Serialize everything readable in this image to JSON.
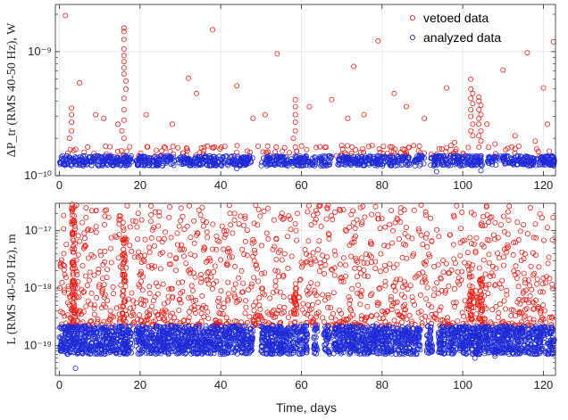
{
  "figure": {
    "xlabel": "Time, days",
    "xticks": [
      0,
      20,
      40,
      60,
      80,
      100,
      120
    ],
    "xlim": [
      -1,
      123
    ]
  },
  "legend": {
    "items": [
      {
        "label": "vetoed data",
        "color": "#e8231c",
        "marker": "circle-open"
      },
      {
        "label": "analyzed data",
        "color": "#1f2bd6",
        "marker": "circle-open"
      }
    ]
  },
  "colors": {
    "vetoed": "#e8231c",
    "analyzed": "#1f2bd6",
    "grid": "#e6e6e6",
    "axis": "#262626"
  },
  "chart_data": [
    {
      "type": "scatter",
      "ylabel": "ΔP_tr (RMS 40-50 Hz), W",
      "yscale": "log",
      "ylim": [
        1e-10,
        2.4e-09
      ],
      "yticks": [
        {
          "value": 1e-10,
          "label": "10⁻¹⁰"
        },
        {
          "value": 1e-09,
          "label": "10⁻⁹"
        }
      ],
      "series": [
        {
          "name": "analyzed data",
          "band": {
            "low": 1.2e-10,
            "high": 1.45e-10
          },
          "x_segments": [
            [
              0,
              18
            ],
            [
              19,
              48
            ],
            [
              50,
              63.5
            ],
            [
              64.5,
              67.5
            ],
            [
              69,
              87
            ],
            [
              88,
              90.5
            ],
            [
              92,
              105
            ],
            [
              106,
              123
            ]
          ],
          "outliers": [
            [
              93.5,
              1.08e-10
            ],
            [
              104.5,
              1.1e-10
            ],
            [
              44,
              1.14e-10
            ]
          ]
        },
        {
          "name": "vetoed data",
          "points": [
            [
              1.5,
              1.95e-09
            ],
            [
              5,
              5.6e-10
            ],
            [
              9,
              3.1e-10
            ],
            [
              16,
              1.55e-09
            ],
            [
              16,
              1.45e-09
            ],
            [
              16,
              1.25e-09
            ],
            [
              16,
              1.05e-09
            ],
            [
              16,
              9.3e-10
            ],
            [
              16,
              8.3e-10
            ],
            [
              16,
              7.4e-10
            ],
            [
              16,
              6.6e-10
            ],
            [
              16.5,
              5.8e-10
            ],
            [
              16.5,
              5e-10
            ],
            [
              16,
              4.2e-10
            ],
            [
              16,
              3.4e-10
            ],
            [
              16,
              2.8e-10
            ],
            [
              15.5,
              2.3e-10
            ],
            [
              16,
              2e-10
            ],
            [
              3,
              3.5e-10
            ],
            [
              3,
              3.1e-10
            ],
            [
              3,
              2.7e-10
            ],
            [
              3,
              2.3e-10
            ],
            [
              2.5,
              2e-10
            ],
            [
              11,
              2.9e-10
            ],
            [
              14.5,
              2.6e-10
            ],
            [
              21.5,
              3.1e-10
            ],
            [
              28,
              2.6e-10
            ],
            [
              32,
              6.1e-10
            ],
            [
              34,
              4.6e-10
            ],
            [
              38,
              1.5e-09
            ],
            [
              44,
              5.3e-10
            ],
            [
              48,
              2.9e-10
            ],
            [
              51,
              3.1e-10
            ],
            [
              54,
              9.6e-10
            ],
            [
              58.5,
              4.1e-10
            ],
            [
              58.5,
              3.6e-10
            ],
            [
              58.5,
              3.1e-10
            ],
            [
              58.5,
              2.7e-10
            ],
            [
              58.5,
              2.3e-10
            ],
            [
              58,
              2e-10
            ],
            [
              58.5,
              1.7e-10
            ],
            [
              62,
              3.6e-10
            ],
            [
              67.5,
              4.1e-10
            ],
            [
              71.5,
              2.9e-10
            ],
            [
              73,
              7.6e-10
            ],
            [
              75.5,
              3.1e-10
            ],
            [
              79,
              1.22e-09
            ],
            [
              83,
              4.6e-10
            ],
            [
              86,
              3.6e-10
            ],
            [
              90.5,
              2.9e-10
            ],
            [
              96,
              5.1e-10
            ],
            [
              102,
              6e-10
            ],
            [
              102,
              5e-10
            ],
            [
              102.5,
              4.6e-10
            ],
            [
              102,
              4.2e-10
            ],
            [
              102.5,
              3.8e-10
            ],
            [
              102,
              3.4e-10
            ],
            [
              102,
              3e-10
            ],
            [
              102.5,
              2.6e-10
            ],
            [
              102,
              2.3e-10
            ],
            [
              102.5,
              2.1e-10
            ],
            [
              104,
              4.3e-10
            ],
            [
              104,
              4e-10
            ],
            [
              104.5,
              3.7e-10
            ],
            [
              104,
              3.4e-10
            ],
            [
              104.5,
              3.1e-10
            ],
            [
              104,
              2.9e-10
            ],
            [
              104,
              2.6e-10
            ],
            [
              104.5,
              2.3e-10
            ],
            [
              104,
              2.1e-10
            ],
            [
              104.5,
              1.9e-10
            ],
            [
              104,
              1.7e-10
            ],
            [
              106,
              2.6e-10
            ],
            [
              110,
              7.1e-10
            ],
            [
              113,
              2.1e-10
            ],
            [
              116,
              9.8e-10
            ],
            [
              120,
              5.1e-10
            ],
            [
              121,
              2.6e-10
            ],
            [
              122.5,
              1.2e-09
            ],
            [
              108,
              1.8e-10
            ],
            [
              118,
              1.9e-10
            ],
            [
              98,
              1.85e-10
            ],
            [
              70,
              1.75e-10
            ],
            [
              26,
              1.7e-10
            ],
            [
              41,
              1.72e-10
            ],
            [
              7,
              1.7e-10
            ],
            [
              96,
              1.68e-10
            ],
            [
              113,
              1.65e-10
            ]
          ]
        }
      ]
    },
    {
      "type": "scatter",
      "ylabel": "L (RMS 40-50 Hz), m",
      "yscale": "log",
      "ylim": [
        3e-20,
        3e-17
      ],
      "yticks": [
        {
          "value": 1e-19,
          "label": "10⁻¹⁹"
        },
        {
          "value": 1e-18,
          "label": "10⁻¹⁸"
        },
        {
          "value": 1e-17,
          "label": "10⁻¹⁷"
        }
      ],
      "series": [
        {
          "name": "analyzed data",
          "band": {
            "low": 7e-20,
            "high": 2.2e-19
          },
          "x_segments": [
            [
              0,
              18
            ],
            [
              19,
              48
            ],
            [
              50,
              61.5
            ],
            [
              63,
              64
            ],
            [
              65.5,
              67
            ],
            [
              68,
              89.5
            ],
            [
              91,
              92.5
            ],
            [
              94,
              123
            ]
          ],
          "outliers": [
            [
              4,
              4e-20
            ],
            [
              103,
              6e-20
            ],
            [
              108,
              6.5e-20
            ]
          ]
        },
        {
          "name": "vetoed data",
          "scatter": {
            "count": 1300,
            "low": 2.2e-19,
            "high": 2.8e-17,
            "log_bias": 0.65
          },
          "columns": [
            {
              "x": 3.5,
              "low": 2.5e-19,
              "high": 2.9e-17,
              "count": 70
            },
            {
              "x": 16,
              "low": 2.5e-19,
              "high": 8e-18,
              "count": 45
            },
            {
              "x": 58.5,
              "low": 2.5e-19,
              "high": 1.2e-18,
              "count": 22
            },
            {
              "x": 102,
              "low": 2.5e-19,
              "high": 1.8e-18,
              "count": 28
            },
            {
              "x": 104.5,
              "low": 2.5e-19,
              "high": 1.5e-18,
              "count": 28
            }
          ]
        }
      ]
    }
  ]
}
